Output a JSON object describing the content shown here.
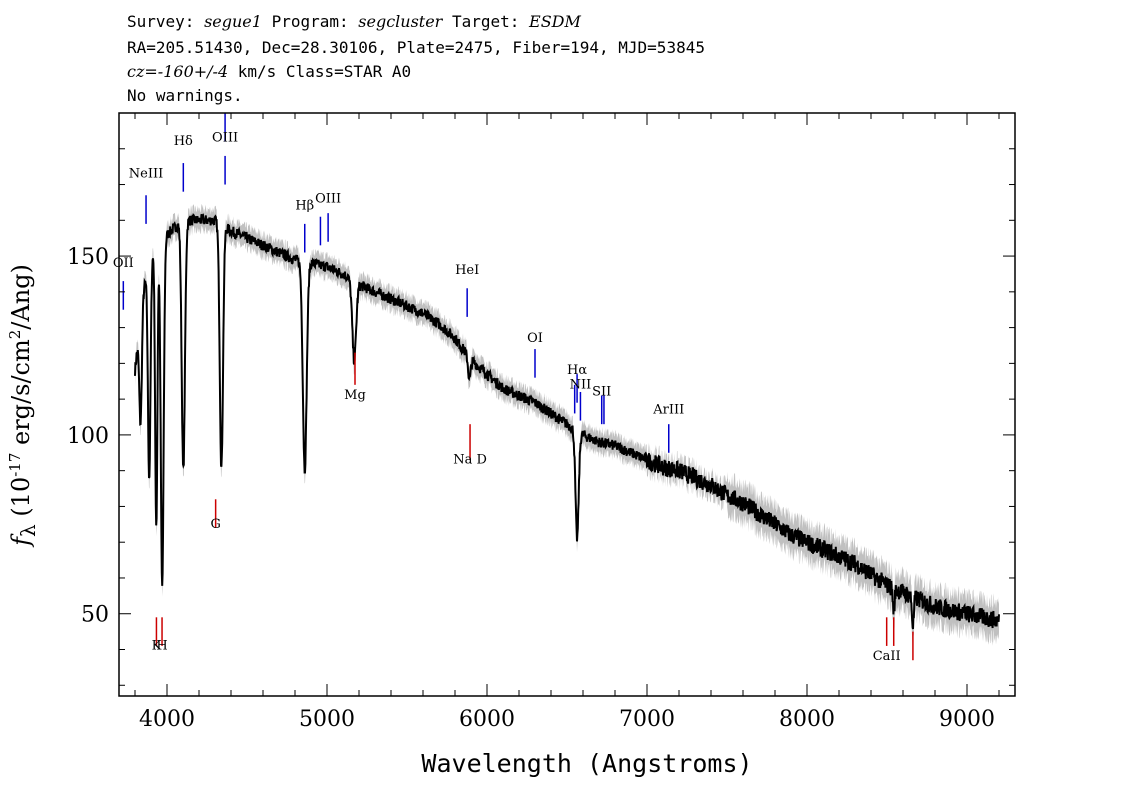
{
  "header": {
    "survey_label": "Survey: ",
    "survey": "segue1",
    "program_label": " Program: ",
    "program": "segcluster",
    "target_label": " Target: ",
    "target": "ESDM",
    "line2": "RA=205.51430, Dec=28.30106, Plate=2475, Fiber=194, MJD=53845",
    "cz_label": "cz=",
    "cz_value": "-160+/-4",
    "cz_rest": " km/s Class=STAR A0",
    "warnings": "No warnings."
  },
  "chart_data": {
    "type": "line",
    "xlabel": "Wavelength (Angstroms)",
    "ylabel_pre": "f",
    "ylabel_sub": "λ",
    "ylabel_mid": " (10",
    "ylabel_sup": "-17",
    "ylabel_post": " erg/s/cm",
    "ylabel_sup2": "2",
    "ylabel_end": "/Ang)",
    "xlim": [
      3700,
      9300
    ],
    "ylim": [
      27,
      190
    ],
    "xticks": [
      4000,
      5000,
      6000,
      7000,
      8000,
      9000
    ],
    "yticks": [
      50,
      100,
      150
    ],
    "continuum": [
      [
        3800,
        118
      ],
      [
        3850,
        140
      ],
      [
        3900,
        150
      ],
      [
        3950,
        155
      ],
      [
        4000,
        156
      ],
      [
        4100,
        160
      ],
      [
        4200,
        160
      ],
      [
        4300,
        160
      ],
      [
        4400,
        157
      ],
      [
        4500,
        155
      ],
      [
        4600,
        153
      ],
      [
        4700,
        151
      ],
      [
        4800,
        149
      ],
      [
        4900,
        148
      ],
      [
        5000,
        147
      ],
      [
        5100,
        145
      ],
      [
        5200,
        142
      ],
      [
        5300,
        140
      ],
      [
        5400,
        138
      ],
      [
        5500,
        136
      ],
      [
        5600,
        134
      ],
      [
        5700,
        131
      ],
      [
        5800,
        127
      ],
      [
        5900,
        121
      ],
      [
        6000,
        117
      ],
      [
        6100,
        113
      ],
      [
        6200,
        111
      ],
      [
        6300,
        109
      ],
      [
        6400,
        106
      ],
      [
        6500,
        103
      ],
      [
        6600,
        100
      ],
      [
        6700,
        98
      ],
      [
        6800,
        97
      ],
      [
        6900,
        95
      ],
      [
        7000,
        93
      ],
      [
        7100,
        91
      ],
      [
        7200,
        90
      ],
      [
        7300,
        88
      ],
      [
        7400,
        86
      ],
      [
        7500,
        83
      ],
      [
        7600,
        81
      ],
      [
        7700,
        78
      ],
      [
        7800,
        75
      ],
      [
        7900,
        72
      ],
      [
        8000,
        70
      ],
      [
        8100,
        68
      ],
      [
        8200,
        66
      ],
      [
        8300,
        64
      ],
      [
        8400,
        61
      ],
      [
        8500,
        58
      ],
      [
        8600,
        56
      ],
      [
        8700,
        54
      ],
      [
        8800,
        52
      ],
      [
        8900,
        51
      ],
      [
        9000,
        50
      ],
      [
        9100,
        49
      ],
      [
        9200,
        48
      ]
    ],
    "absorption_lines": [
      {
        "center": 3835,
        "depth": 30,
        "width": 8
      },
      {
        "center": 3889,
        "depth": 60,
        "width": 8
      },
      {
        "center": 3933,
        "depth": 80,
        "width": 7
      },
      {
        "center": 3970,
        "depth": 98,
        "width": 9
      },
      {
        "center": 4102,
        "depth": 70,
        "width": 10
      },
      {
        "center": 4340,
        "depth": 68,
        "width": 10
      },
      {
        "center": 4861,
        "depth": 58,
        "width": 12
      },
      {
        "center": 5170,
        "depth": 22,
        "width": 12
      },
      {
        "center": 5890,
        "depth": 6,
        "width": 8
      },
      {
        "center": 6563,
        "depth": 30,
        "width": 10
      },
      {
        "center": 8542,
        "depth": 6,
        "width": 6
      },
      {
        "center": 8662,
        "depth": 8,
        "width": 6
      }
    ],
    "emission_labels": [
      {
        "name": "NeIII",
        "wave": 3869,
        "label_y": 172,
        "tick_top": 167,
        "tick_bot": 159
      },
      {
        "name": "Hδ",
        "wave": 4102,
        "label_y": 181,
        "tick_top": 176,
        "tick_bot": 168
      },
      {
        "name": "OIII",
        "wave": 4363,
        "label_y": 182,
        "tick_top": 190,
        "tick_bot": 182
      },
      {
        "name": "OIII",
        "wave": 4363,
        "label_y": null,
        "tick_top": 178,
        "tick_bot": 170
      },
      {
        "name": "Hβ",
        "wave": 4861,
        "label_y": 163,
        "tick_top": 159,
        "tick_bot": 151
      },
      {
        "name": "OIII",
        "wave": 4959,
        "label_y": null,
        "tick_top": 161,
        "tick_bot": 153
      },
      {
        "name": "OIII",
        "wave": 5007,
        "label_y": 165,
        "tick_top": 162,
        "tick_bot": 154
      },
      {
        "name": "OII",
        "wave": 3727,
        "label_y": 147,
        "tick_top": 143,
        "tick_bot": 135
      },
      {
        "name": "HeI",
        "wave": 5876,
        "label_y": 145,
        "tick_top": 141,
        "tick_bot": 133
      },
      {
        "name": "OI",
        "wave": 6300,
        "label_y": 126,
        "tick_top": 124,
        "tick_bot": 116
      },
      {
        "name": "NII",
        "wave": 6548,
        "label_y": null,
        "tick_top": 114,
        "tick_bot": 106
      },
      {
        "name": "Hα",
        "wave": 6563,
        "label_y": 117,
        "tick_top": 117,
        "tick_bot": 109
      },
      {
        "name": "NII",
        "wave": 6584,
        "label_y": 113,
        "tick_top": 112,
        "tick_bot": 104
      },
      {
        "name": "SII",
        "wave": 6717,
        "label_y": 111,
        "tick_top": 111,
        "tick_bot": 103
      },
      {
        "name": "SII",
        "wave": 6731,
        "label_y": null,
        "tick_top": 111,
        "tick_bot": 103
      },
      {
        "name": "ArIII",
        "wave": 7136,
        "label_y": 106,
        "tick_top": 103,
        "tick_bot": 95
      }
    ],
    "absorption_labels": [
      {
        "name": "G",
        "wave": 4304,
        "label_y": 74,
        "tick_top": 82,
        "tick_bot": 74
      },
      {
        "name": "Mg",
        "wave": 5175,
        "label_y": 110,
        "tick_top": 123,
        "tick_bot": 114
      },
      {
        "name": "Na D",
        "wave": 5894,
        "label_y": 92,
        "tick_top": 103,
        "tick_bot": 93
      },
      {
        "name": "K",
        "wave": 3934,
        "label_y": 40,
        "tick_top": 49,
        "tick_bot": 41
      },
      {
        "name": "H",
        "wave": 3969,
        "label_y": 40,
        "tick_top": 49,
        "tick_bot": 41
      },
      {
        "name": "CaII",
        "wave": 8498,
        "label_y": 37,
        "tick_top": 49,
        "tick_bot": 41
      },
      {
        "name": "CaII",
        "wave": 8542,
        "label_y": null,
        "tick_top": 49,
        "tick_bot": 41
      },
      {
        "name": "CaII",
        "wave": 8662,
        "label_y": null,
        "tick_top": 45,
        "tick_bot": 37
      }
    ],
    "colors": {
      "spectrum": "#000000",
      "error_band": "#c0c0c0",
      "emission": "#0000cc",
      "absorption": "#cc0000"
    }
  }
}
